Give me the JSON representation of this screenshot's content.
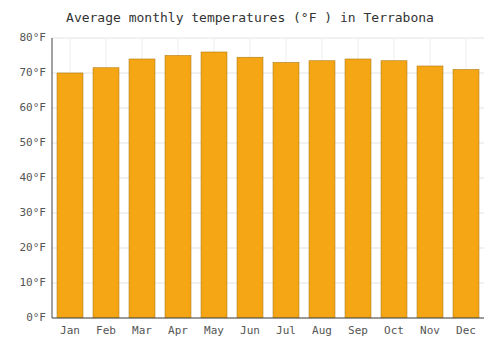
{
  "chart_data": {
    "type": "bar",
    "title": "Average monthly temperatures (°F ) in Terrabona",
    "categories": [
      "Jan",
      "Feb",
      "Mar",
      "Apr",
      "May",
      "Jun",
      "Jul",
      "Aug",
      "Sep",
      "Oct",
      "Nov",
      "Dec"
    ],
    "values": [
      70.0,
      71.5,
      74.0,
      75.0,
      76.0,
      74.5,
      73.0,
      73.5,
      74.0,
      73.5,
      72.0,
      71.0
    ],
    "color": "#f5a614",
    "ylim": [
      0,
      80
    ],
    "yticks": [
      {
        "value": 0,
        "label": "0°F"
      },
      {
        "value": 10,
        "label": "10°F"
      },
      {
        "value": 20,
        "label": "20°F"
      },
      {
        "value": 30,
        "label": "30°F"
      },
      {
        "value": 40,
        "label": "40°F"
      },
      {
        "value": 50,
        "label": "50°F"
      },
      {
        "value": 60,
        "label": "60°F"
      },
      {
        "value": 70,
        "label": "70°F"
      },
      {
        "value": 80,
        "label": "80°F"
      }
    ],
    "grid": true
  }
}
